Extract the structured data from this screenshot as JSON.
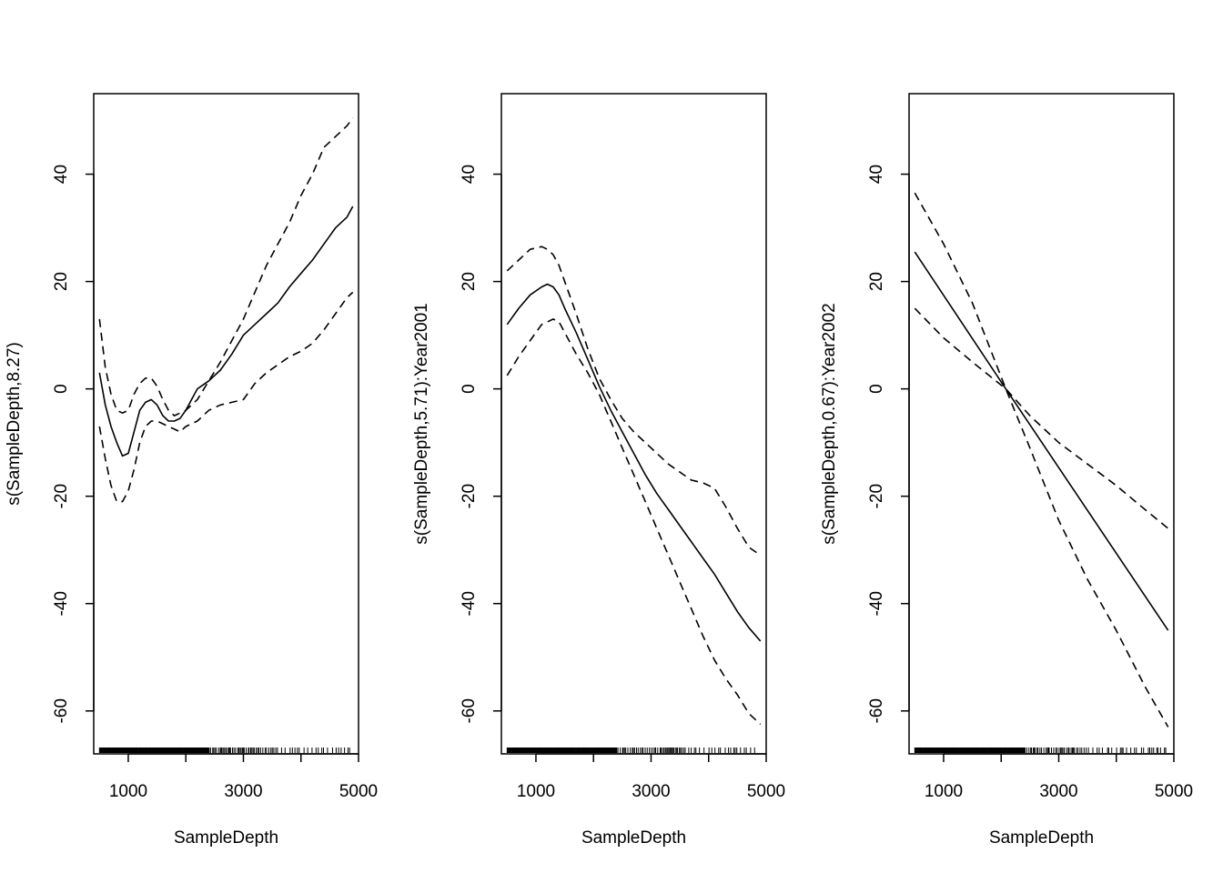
{
  "chart_data": [
    {
      "type": "line",
      "xlabel": "SampleDepth",
      "ylabel": "s(SampleDepth,8.27)",
      "xlim": [
        400,
        5000
      ],
      "ylim": [
        -68,
        55
      ],
      "xticks": [
        1000,
        3000,
        5000
      ],
      "xtick_labels": [
        "1000",
        "3000",
        "5000"
      ],
      "yticks": [
        -60,
        -40,
        -20,
        0,
        20,
        40
      ],
      "ytick_labels": [
        "-60",
        "-40",
        "-20",
        "0",
        "20",
        "40"
      ],
      "grid": false,
      "series": [
        {
          "style": "solid",
          "x": [
            500,
            600,
            700,
            800,
            900,
            1000,
            1100,
            1200,
            1300,
            1400,
            1500,
            1600,
            1700,
            1800,
            1900,
            2000,
            2100,
            2200,
            2400,
            2600,
            2800,
            3000,
            3200,
            3400,
            3600,
            3800,
            4000,
            4200,
            4400,
            4600,
            4800,
            4900
          ],
          "y": [
            3,
            -3,
            -7,
            -10,
            -12.5,
            -12,
            -8,
            -4,
            -2.5,
            -2,
            -3,
            -5,
            -6,
            -6,
            -5.5,
            -4,
            -2,
            0,
            1.5,
            3.5,
            6.5,
            10,
            12,
            14,
            16,
            19,
            21.5,
            24,
            27,
            30,
            32,
            34
          ]
        },
        {
          "style": "dashed",
          "x": [
            500,
            600,
            700,
            800,
            900,
            1000,
            1100,
            1200,
            1300,
            1400,
            1500,
            1600,
            1700,
            1800,
            1900,
            2000,
            2200,
            2400,
            2600,
            2800,
            3000,
            3200,
            3400,
            3600,
            3800,
            4000,
            4200,
            4400,
            4600,
            4800,
            4900
          ],
          "y": [
            13,
            4,
            -1,
            -4,
            -4.5,
            -4,
            -1,
            1,
            2,
            2,
            0.5,
            -2,
            -4,
            -5,
            -4.5,
            -4,
            -2,
            1.5,
            5,
            9,
            13,
            18,
            23,
            27,
            31,
            36,
            40,
            45,
            47,
            49,
            50.5
          ]
        },
        {
          "style": "dashed",
          "x": [
            500,
            600,
            700,
            800,
            900,
            1000,
            1100,
            1200,
            1300,
            1400,
            1500,
            1600,
            1700,
            1800,
            1900,
            2000,
            2200,
            2400,
            2600,
            2800,
            3000,
            3200,
            3400,
            3600,
            3800,
            4000,
            4200,
            4400,
            4600,
            4800,
            4900
          ],
          "y": [
            -7,
            -13,
            -18,
            -21,
            -21,
            -19,
            -15,
            -10,
            -7,
            -6,
            -6,
            -6.5,
            -7,
            -7.5,
            -8,
            -7,
            -6,
            -4,
            -3,
            -2.5,
            -2,
            1,
            3,
            4.5,
            6,
            7,
            8.5,
            11,
            14,
            17,
            18
          ]
        }
      ],
      "rug": true
    },
    {
      "type": "line",
      "xlabel": "SampleDepth",
      "ylabel": "s(SampleDepth,5.71):Year2001",
      "xlim": [
        400,
        5000
      ],
      "ylim": [
        -68,
        55
      ],
      "xticks": [
        1000,
        3000,
        5000
      ],
      "xtick_labels": [
        "1000",
        "3000",
        "5000"
      ],
      "yticks": [
        -60,
        -40,
        -20,
        0,
        20,
        40
      ],
      "ytick_labels": [
        "-60",
        "-40",
        "-20",
        "0",
        "20",
        "40"
      ],
      "grid": false,
      "series": [
        {
          "style": "solid",
          "x": [
            500,
            700,
            900,
            1100,
            1200,
            1300,
            1400,
            1500,
            1700,
            1900,
            2100,
            2300,
            2500,
            2700,
            2900,
            3100,
            3300,
            3500,
            3700,
            3900,
            4100,
            4300,
            4500,
            4700,
            4900
          ],
          "y": [
            12,
            15,
            17.5,
            19,
            19.5,
            19,
            17.5,
            15,
            10.5,
            5.5,
            0.5,
            -4,
            -8,
            -12,
            -16,
            -19.5,
            -22.5,
            -25.5,
            -28.5,
            -31.5,
            -34.5,
            -38,
            -41.5,
            -44.5,
            -47
          ]
        },
        {
          "style": "dashed",
          "x": [
            500,
            700,
            900,
            1100,
            1200,
            1300,
            1400,
            1500,
            1700,
            1900,
            2100,
            2300,
            2500,
            2700,
            2900,
            3100,
            3300,
            3500,
            3700,
            3900,
            4100,
            4300,
            4500,
            4700,
            4900
          ],
          "y": [
            22,
            24,
            26,
            26.5,
            26,
            25,
            23,
            20,
            14,
            7.5,
            2,
            -2,
            -5.5,
            -8,
            -10,
            -12,
            -14,
            -15.5,
            -17,
            -17.5,
            -18.5,
            -22,
            -26,
            -29.5,
            -31
          ]
        },
        {
          "style": "dashed",
          "x": [
            500,
            700,
            900,
            1100,
            1200,
            1300,
            1400,
            1500,
            1700,
            1900,
            2100,
            2300,
            2500,
            2700,
            2900,
            3100,
            3300,
            3500,
            3700,
            3900,
            4100,
            4300,
            4500,
            4700,
            4900
          ],
          "y": [
            2.5,
            6,
            9,
            12,
            12.5,
            13,
            12.5,
            10.5,
            6.5,
            3,
            -1,
            -6,
            -11,
            -16,
            -21,
            -26,
            -31,
            -36,
            -41,
            -46,
            -50.5,
            -54,
            -57,
            -60.5,
            -62.5
          ]
        }
      ],
      "rug": true
    },
    {
      "type": "line",
      "xlabel": "SampleDepth",
      "ylabel": "s(SampleDepth,0.67):Year2002",
      "xlim": [
        400,
        5000
      ],
      "ylim": [
        -68,
        55
      ],
      "xticks": [
        1000,
        3000,
        5000
      ],
      "xtick_labels": [
        "1000",
        "3000",
        "5000"
      ],
      "yticks": [
        -60,
        -40,
        -20,
        0,
        20,
        40
      ],
      "ytick_labels": [
        "-60",
        "-40",
        "-20",
        "0",
        "20",
        "40"
      ],
      "grid": false,
      "series": [
        {
          "style": "solid",
          "x": [
            500,
            2080,
            4900
          ],
          "y": [
            25.5,
            0,
            -45
          ]
        },
        {
          "style": "dashed",
          "x": [
            500,
            1000,
            1500,
            2080,
            2500,
            3000,
            3500,
            4000,
            4500,
            4900
          ],
          "y": [
            36.5,
            27,
            16,
            0,
            -11,
            -24.5,
            -35.5,
            -45,
            -55.5,
            -63
          ]
        },
        {
          "style": "dashed",
          "x": [
            500,
            1000,
            1500,
            2080,
            2500,
            3000,
            3500,
            4000,
            4500,
            4900
          ],
          "y": [
            15,
            9.5,
            5,
            0,
            -5,
            -10,
            -14,
            -18,
            -22.5,
            -26
          ]
        }
      ],
      "rug": true
    }
  ]
}
